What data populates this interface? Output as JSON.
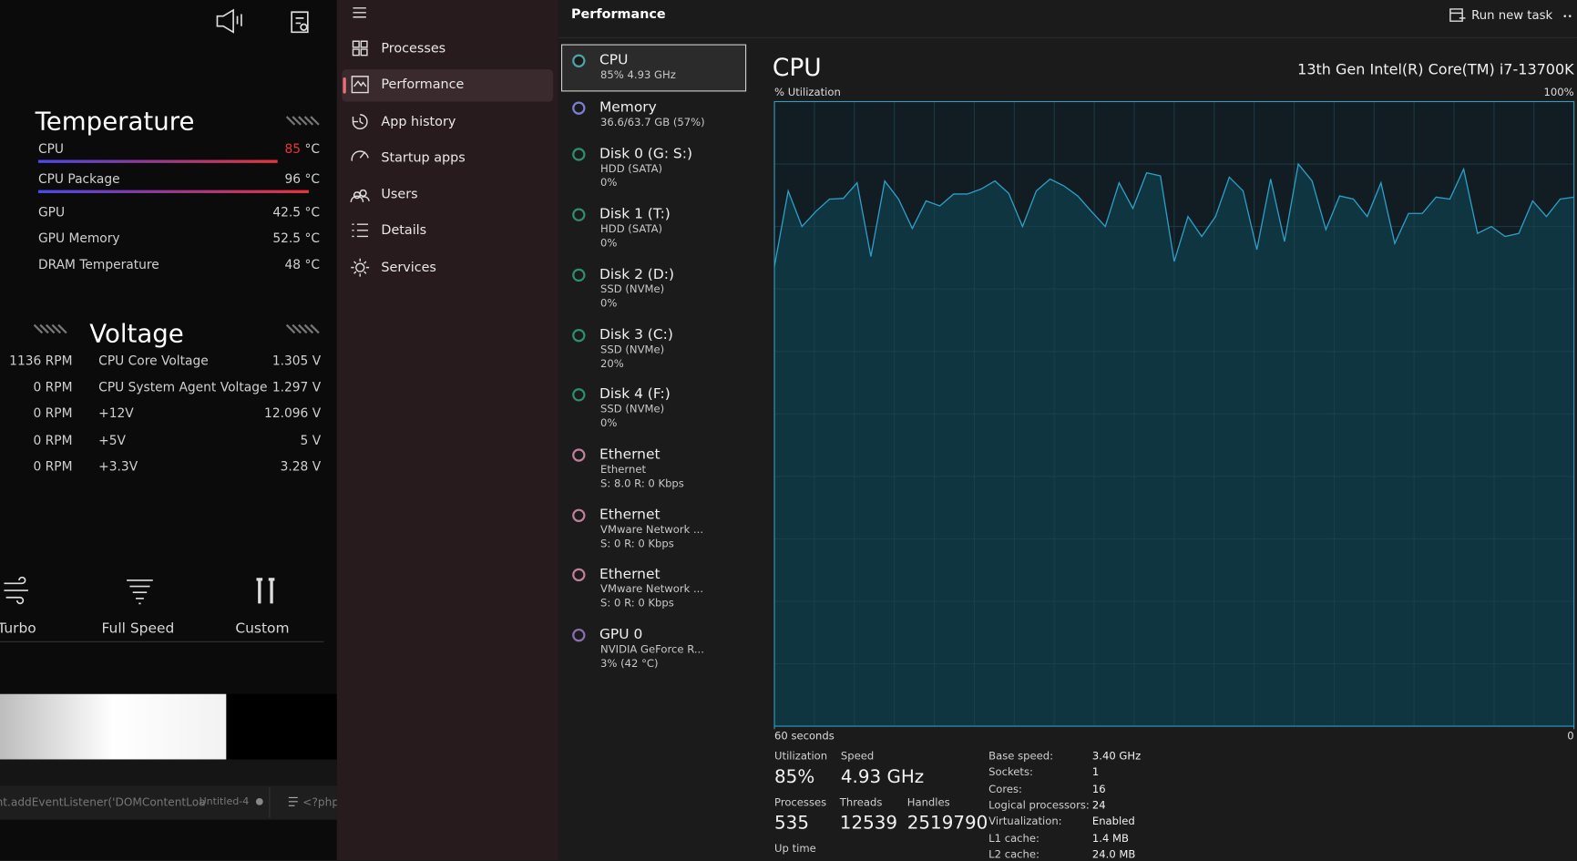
{
  "sidebar": {
    "temperature": {
      "title": "Temperature",
      "rows": [
        {
          "label": "CPU",
          "value": 85,
          "unit": "°C",
          "bar": true,
          "value_color": "#e8343a"
        },
        {
          "label": "CPU Package",
          "value": 96,
          "unit": "°C",
          "bar": true
        },
        {
          "label": "GPU",
          "value": 42.5,
          "unit": "°C"
        },
        {
          "label": "GPU Memory",
          "value": 52.5,
          "unit": "°C"
        },
        {
          "label": "DRAM Temperature",
          "value": 48,
          "unit": "°C"
        }
      ]
    },
    "voltage": {
      "title": "Voltage",
      "rows": [
        {
          "fan": "1136 RPM",
          "label": "CPU Core Voltage",
          "value": "1.305 V"
        },
        {
          "fan": "0 RPM",
          "label": "CPU System Agent Voltage",
          "value": "1.297 V"
        },
        {
          "fan": "0 RPM",
          "label": "+12V",
          "value": "12.096 V"
        },
        {
          "fan": "0 RPM",
          "label": "+5V",
          "value": "5 V"
        },
        {
          "fan": "0 RPM",
          "label": "+3.3V",
          "value": "3.28 V"
        }
      ]
    },
    "fan_modes": [
      "Turbo",
      "Full Speed",
      "Custom"
    ],
    "editor": {
      "code": "nt.addEventListener('DOMContentLoa",
      "tab": "Untitled-4",
      "tab2": "<?php"
    }
  },
  "nav": {
    "items": [
      "Processes",
      "Performance",
      "App history",
      "Startup apps",
      "Users",
      "Details",
      "Services"
    ],
    "active": 1
  },
  "header": {
    "title": "Performance",
    "action": "Run new task"
  },
  "devices": {
    "selected": 0,
    "items": [
      {
        "name": "CPU",
        "lines": [
          "85%  4.93 GHz"
        ],
        "color": "#4fa3a5"
      },
      {
        "name": "Memory",
        "lines": [
          "36.6/63.7 GB (57%)"
        ],
        "color": "#7b7fd6"
      },
      {
        "name": "Disk 0 (G: S:)",
        "lines": [
          "HDD (SATA)",
          "0%"
        ],
        "color": "#2f8f6c"
      },
      {
        "name": "Disk 1 (T:)",
        "lines": [
          "HDD (SATA)",
          "0%"
        ],
        "color": "#2f8f6c"
      },
      {
        "name": "Disk 2 (D:)",
        "lines": [
          "SSD (NVMe)",
          "0%"
        ],
        "color": "#2f8f6c"
      },
      {
        "name": "Disk 3 (C:)",
        "lines": [
          "SSD (NVMe)",
          "20%"
        ],
        "color": "#2f8f6c"
      },
      {
        "name": "Disk 4 (F:)",
        "lines": [
          "SSD (NVMe)",
          "0%"
        ],
        "color": "#2f8f6c"
      },
      {
        "name": "Ethernet",
        "lines": [
          "Ethernet",
          "S: 8.0 R: 0 Kbps"
        ],
        "color": "#c07f9c"
      },
      {
        "name": "Ethernet",
        "lines": [
          "VMware Network ...",
          "S: 0 R: 0 Kbps"
        ],
        "color": "#c07f9c"
      },
      {
        "name": "Ethernet",
        "lines": [
          "VMware Network ...",
          "S: 0 R: 0 Kbps"
        ],
        "color": "#c07f9c"
      },
      {
        "name": "GPU 0",
        "lines": [
          "NVIDIA GeForce R...",
          "3% (42 °C)"
        ],
        "color": "#8a6fb0"
      }
    ]
  },
  "detail": {
    "title": "CPU",
    "model": "13th Gen Intel(R) Core(TM) i7-13700K",
    "stats": [
      {
        "label": "Utilization",
        "value": "85%"
      },
      {
        "label": "Speed",
        "value": "4.93 GHz"
      },
      {
        "label": "Processes",
        "value": "535"
      },
      {
        "label": "Threads",
        "value": "12539"
      },
      {
        "label": "Handles",
        "value": "2519790"
      },
      {
        "label": "Up time"
      }
    ],
    "specs": [
      [
        "Base speed:",
        "3.40 GHz"
      ],
      [
        "Sockets:",
        "1"
      ],
      [
        "Cores:",
        "16"
      ],
      [
        "Logical processors:",
        "24"
      ],
      [
        "Virtualization:",
        "Enabled"
      ],
      [
        "L1 cache:",
        "1.4 MB"
      ],
      [
        "L2 cache:",
        "24.0 MB"
      ]
    ]
  },
  "chart_data": {
    "type": "area",
    "ylabel": "% Utilization",
    "ylim": [
      0,
      100
    ],
    "yticks": [
      {
        "value": 100,
        "label": "100%"
      }
    ],
    "xlim": [
      60,
      0
    ],
    "xticks": [
      {
        "value": 60,
        "label": "60 seconds"
      },
      0
    ],
    "color": "#2e9ec6",
    "fill": "#0f3541",
    "grid": true,
    "values": [
      73.6,
      85.7,
      80.0,
      82.4,
      84.4,
      84.5,
      87.0,
      75.2,
      87.3,
      84.4,
      79.7,
      84.1,
      83.3,
      85.2,
      85.2,
      86.0,
      87.3,
      85.3,
      80.0,
      85.7,
      87.6,
      86.5,
      84.9,
      82.4,
      80.0,
      87.0,
      82.9,
      88.6,
      88.1,
      74.4,
      81.6,
      78.4,
      81.6,
      87.9,
      85.7,
      76.3,
      87.6,
      77.6,
      90.0,
      87.3,
      79.5,
      84.9,
      84.4,
      81.6,
      87.0,
      77.3,
      82.1,
      82.1,
      84.7,
      84.4,
      89.2,
      78.9,
      80.0,
      78.4,
      78.9,
      84.1,
      81.6,
      84.4,
      84.7
    ]
  }
}
